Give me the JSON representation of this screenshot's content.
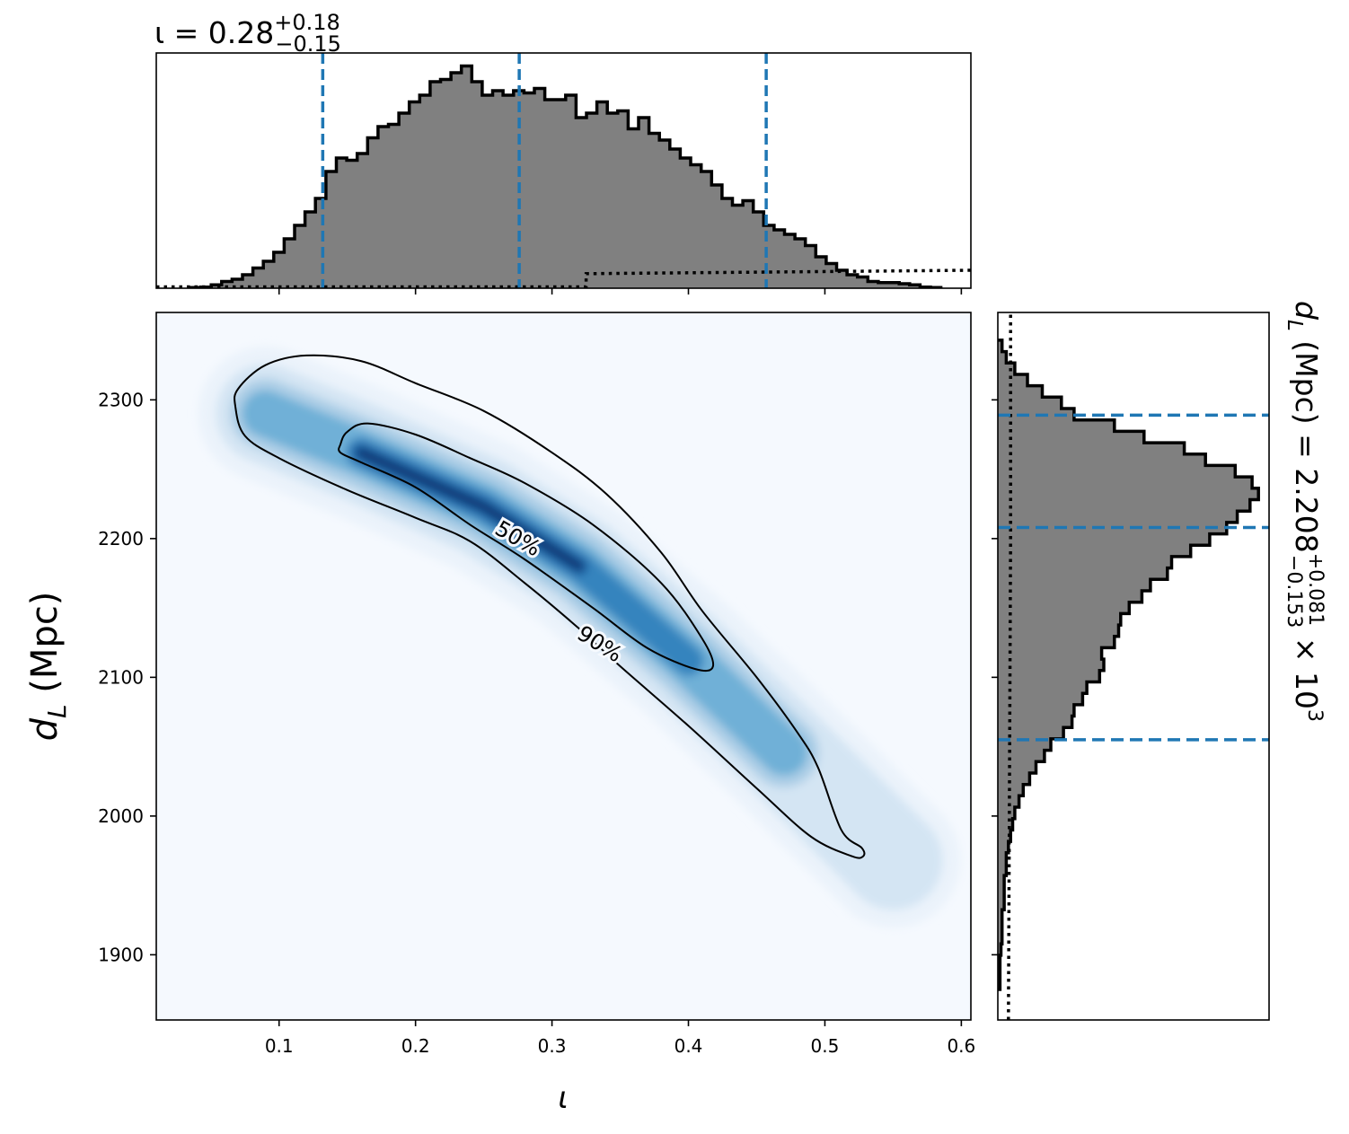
{
  "chart_data": [
    {
      "panel": "marginal-iota",
      "type": "histogram",
      "title": {
        "base": "ι = 0.28",
        "sup": "+0.18",
        "sub": "−0.15"
      },
      "xlim": [
        0.01,
        0.607
      ],
      "bin_range": [
        0.035,
        0.585
      ],
      "counts": [
        0.3,
        0.5,
        1.5,
        3,
        4,
        6,
        9,
        12,
        16,
        22,
        28,
        34,
        40,
        52,
        58,
        57,
        60,
        67,
        72,
        73,
        78,
        83,
        86,
        92,
        93,
        96,
        99,
        92,
        86,
        88,
        86,
        88,
        87,
        89,
        84,
        84,
        86,
        76,
        78,
        83,
        78,
        79,
        71,
        76,
        69,
        66,
        62,
        58,
        55,
        52,
        46,
        40,
        37,
        39,
        34,
        28,
        26,
        24,
        22,
        19,
        14,
        11,
        8,
        6,
        5,
        3,
        2.5,
        2.5,
        2,
        1.5,
        0.5,
        0.3
      ],
      "quantiles": [
        0.132,
        0.276,
        0.457
      ],
      "prior": {
        "x": [
          0.01,
          0.325,
          0.325,
          0.607
        ],
        "y": [
          0.6,
          0.6,
          6.5,
          8
        ]
      },
      "ylim": [
        0,
        100
      ]
    },
    {
      "panel": "joint",
      "type": "heatmap",
      "xlabel": "ι",
      "ylabel": "d_L (Mpc)",
      "xlim": [
        0.01,
        0.607
      ],
      "ylim": [
        1853,
        2363
      ],
      "xticks": [
        0.1,
        0.2,
        0.3,
        0.4,
        0.5,
        0.6
      ],
      "xtick_labels": [
        "0.1",
        "0.2",
        "0.3",
        "0.4",
        "0.5",
        "0.6"
      ],
      "yticks": [
        1900,
        2000,
        2100,
        2200,
        2300
      ],
      "ytick_labels": [
        "1900",
        "2000",
        "2100",
        "2200",
        "2300"
      ],
      "ridge": [
        [
          0.09,
          2290
        ],
        [
          0.16,
          2262
        ],
        [
          0.25,
          2223
        ],
        [
          0.32,
          2180
        ],
        [
          0.4,
          2112
        ],
        [
          0.47,
          2046
        ],
        [
          0.55,
          1968
        ]
      ],
      "contours": [
        {
          "label": "50%",
          "points": [
            [
              0.145,
              2268
            ],
            [
              0.15,
              2277
            ],
            [
              0.165,
              2283
            ],
            [
              0.2,
              2275
            ],
            [
              0.24,
              2258
            ],
            [
              0.28,
              2240
            ],
            [
              0.33,
              2210
            ],
            [
              0.38,
              2168
            ],
            [
              0.41,
              2128
            ],
            [
              0.418,
              2108
            ],
            [
              0.405,
              2106
            ],
            [
              0.37,
              2121
            ],
            [
              0.33,
              2150
            ],
            [
              0.28,
              2185
            ],
            [
              0.24,
              2210
            ],
            [
              0.2,
              2237
            ],
            [
              0.16,
              2255
            ],
            [
              0.145,
              2262
            ]
          ]
        },
        {
          "label": "90%",
          "points": [
            [
              0.07,
              2308
            ],
            [
              0.09,
              2325
            ],
            [
              0.12,
              2332
            ],
            [
              0.16,
              2328
            ],
            [
              0.2,
              2312
            ],
            [
              0.25,
              2292
            ],
            [
              0.3,
              2262
            ],
            [
              0.34,
              2232
            ],
            [
              0.38,
              2190
            ],
            [
              0.41,
              2148
            ],
            [
              0.45,
              2100
            ],
            [
              0.48,
              2060
            ],
            [
              0.495,
              2035
            ],
            [
              0.512,
              1990
            ],
            [
              0.527,
              1977
            ],
            [
              0.528,
              1971
            ],
            [
              0.52,
              1971
            ],
            [
              0.49,
              1985
            ],
            [
              0.45,
              2020
            ],
            [
              0.4,
              2065
            ],
            [
              0.35,
              2108
            ],
            [
              0.32,
              2135
            ],
            [
              0.28,
              2168
            ],
            [
              0.24,
              2198
            ],
            [
              0.2,
              2215
            ],
            [
              0.15,
              2235
            ],
            [
              0.1,
              2258
            ],
            [
              0.075,
              2274
            ],
            [
              0.068,
              2295
            ]
          ]
        }
      ]
    },
    {
      "panel": "marginal-dL",
      "type": "histogram",
      "orientation": "horizontal",
      "title": {
        "base": "d_L (Mpc) = 2.208",
        "sup": "+0.081",
        "sub": "−0.153",
        "suffix": "× 10",
        "exp": "3"
      },
      "ylim": [
        1853,
        2363
      ],
      "bin_range": [
        1875,
        2343
      ],
      "counts": [
        1,
        1,
        1,
        1.5,
        2,
        2,
        2,
        3,
        3,
        3,
        4,
        4,
        5,
        6,
        7,
        8,
        10,
        12,
        15,
        18,
        22,
        25,
        31,
        35,
        36,
        40,
        42,
        48,
        50,
        49,
        55,
        57,
        58,
        62,
        68,
        72,
        80,
        82,
        91,
        100,
        108,
        113,
        119,
        123,
        120,
        112,
        98,
        88,
        69,
        55,
        36,
        30,
        21,
        14,
        8,
        4,
        2
      ],
      "quantiles": [
        2055,
        2208,
        2289
      ],
      "prior": {
        "x": [
          5,
          6,
          6
        ],
        "y": [
          1853,
          2200,
          2363
        ]
      },
      "xlim": [
        0,
        128
      ]
    }
  ]
}
